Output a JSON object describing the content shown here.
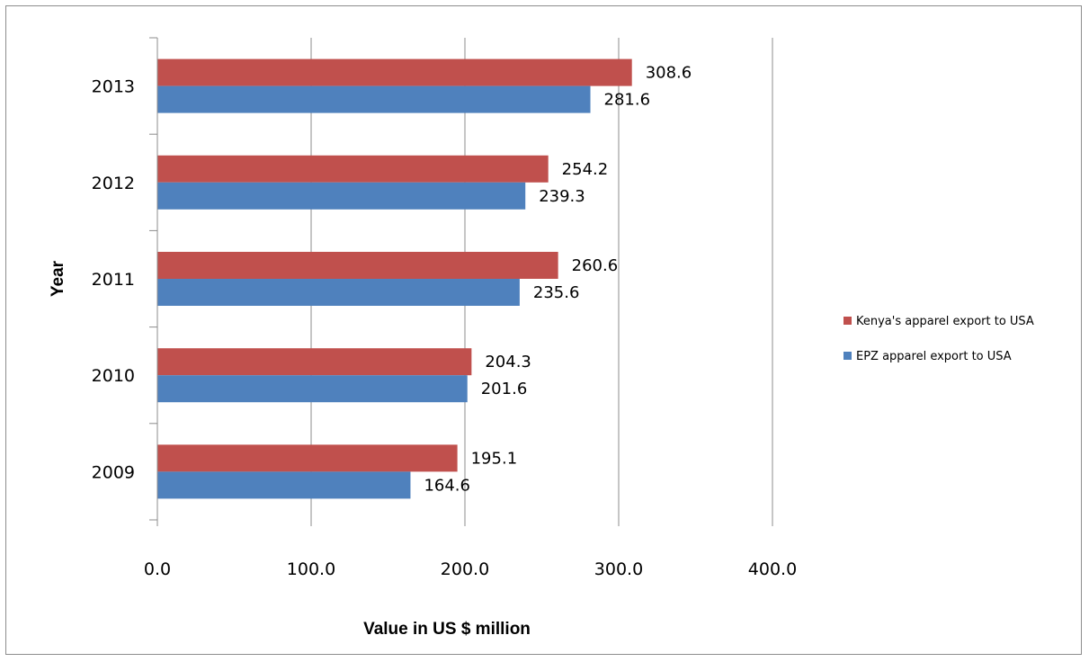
{
  "chart_data": {
    "type": "bar",
    "orientation": "horizontal",
    "categories": [
      "2009",
      "2010",
      "2011",
      "2012",
      "2013"
    ],
    "series": [
      {
        "name": "Kenya's apparel export to USA",
        "values": [
          195.1,
          204.3,
          260.6,
          254.2,
          308.6
        ],
        "color": "#c0504d",
        "labels": [
          "195.1",
          "204.3",
          "260.6",
          "254.2",
          "308.6"
        ]
      },
      {
        "name": "EPZ apparel export to USA",
        "values": [
          164.6,
          201.6,
          235.6,
          239.3,
          281.6
        ],
        "color": "#4f81bd",
        "labels": [
          "164.6",
          "201.6",
          "235.6",
          "239.3",
          "281.6"
        ]
      }
    ],
    "xlabel": "Value in US $ million",
    "ylabel": "Year",
    "xlim": [
      0,
      400
    ],
    "xticks": [
      "0.0",
      "100.0",
      "200.0",
      "300.0",
      "400.0"
    ],
    "grid": "vertical",
    "legend_position": "right"
  }
}
